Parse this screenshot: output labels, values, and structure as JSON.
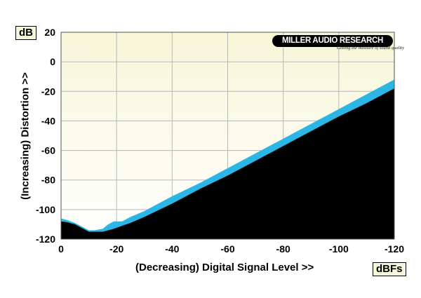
{
  "chart_data": {
    "type": "area",
    "ylabel": "(Increasing) Distortion >>",
    "xlabel": "(Decreasing) Digital Signal Level >>",
    "y_unit": "dB",
    "x_unit": "dBFs",
    "xlim": [
      0,
      -120
    ],
    "ylim": [
      -120,
      20
    ],
    "x_ticks": [
      0,
      -20,
      -40,
      -60,
      -80,
      -100,
      -120
    ],
    "x_tick_labels": [
      "0",
      "-20",
      "-40",
      "-60",
      "-80",
      "-100",
      "-120"
    ],
    "y_ticks": [
      20,
      0,
      -20,
      -40,
      -60,
      -80,
      -100,
      -120
    ],
    "y_tick_labels": [
      "20",
      "0",
      "-20",
      "-40",
      "-60",
      "-80",
      "-100",
      "-120"
    ],
    "grid": true,
    "series": [
      {
        "color": "#2cb6e6",
        "x": [
          0,
          -2,
          -5,
          -8,
          -10,
          -12,
          -15,
          -17,
          -19,
          -22,
          -25,
          -30,
          -40,
          -50,
          -60,
          -70,
          -80,
          -90,
          -100,
          -110,
          -120
        ],
        "y": [
          -106,
          -107,
          -109,
          -112,
          -114,
          -114,
          -113,
          -110,
          -108,
          -108,
          -105,
          -101,
          -91,
          -82,
          -72,
          -62,
          -52,
          -42,
          -32,
          -22,
          -12
        ]
      },
      {
        "color": "#000000",
        "x": [
          0,
          -2,
          -5,
          -8,
          -10,
          -12,
          -15,
          -17,
          -19,
          -22,
          -25,
          -30,
          -40,
          -50,
          -60,
          -70,
          -80,
          -90,
          -100,
          -110,
          -120
        ],
        "y": [
          -108,
          -108.5,
          -110,
          -113,
          -115,
          -115,
          -115,
          -114,
          -113,
          -111,
          -109,
          -105,
          -96,
          -86,
          -77,
          -67,
          -57,
          -47,
          -37,
          -28,
          -18
        ]
      }
    ],
    "background_gradient": [
      "#f7f6d8",
      "#ffffff"
    ]
  },
  "logo": {
    "text": "MILLER AUDIO RESEARCH",
    "tagline": "Getting the measure of sound quality"
  }
}
